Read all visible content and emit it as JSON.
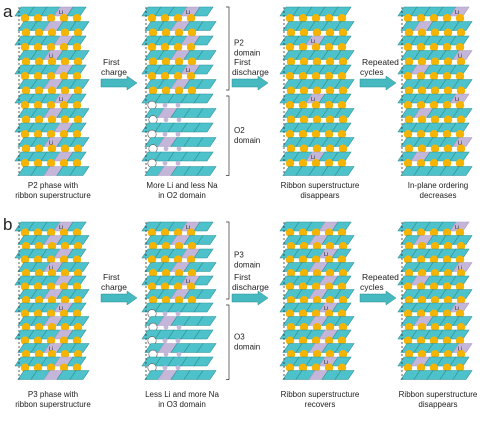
{
  "panels": [
    {
      "letter": "a",
      "stages": [
        {
          "caption": [
            "P2 phase with",
            "ribbon superstructure"
          ]
        },
        {
          "caption": [
            "More Li and less Na",
            "in O2 domain"
          ]
        },
        {
          "caption": [
            "Ribbon superstructure",
            "disappears"
          ]
        },
        {
          "caption": [
            "In-plane ordering",
            "decreases"
          ]
        }
      ],
      "arrows": [
        [
          "First",
          "charge"
        ],
        [
          "First",
          "discharge"
        ],
        [
          "Repeated",
          "cycles"
        ]
      ],
      "domains": [
        [
          "P2",
          "domain"
        ],
        [
          "O2",
          "domain"
        ]
      ]
    },
    {
      "letter": "b",
      "stages": [
        {
          "caption": [
            "P3 phase with",
            "ribbon superstructure"
          ]
        },
        {
          "caption": [
            "Less Li and more Na",
            "in O3 domain"
          ]
        },
        {
          "caption": [
            "Ribbon superstructure",
            "recovers"
          ]
        },
        {
          "caption": [
            "Ribbon superstructure",
            "disappears"
          ]
        }
      ],
      "arrows": [
        [
          "First",
          "charge"
        ],
        [
          "First",
          "discharge"
        ],
        [
          "Repeated",
          "cycles"
        ]
      ],
      "domains": [
        [
          "P3",
          "domain"
        ],
        [
          "O3",
          "domain"
        ]
      ]
    }
  ],
  "li_label": "Li",
  "colors": {
    "tm_layer": "#4dc2ca",
    "tm_stroke": "#2c8f95",
    "li_ordered": "#c3b6d9",
    "na_ion": "#f5b400",
    "vacancy": "#ffffff",
    "arrow": "#45b8c0"
  }
}
